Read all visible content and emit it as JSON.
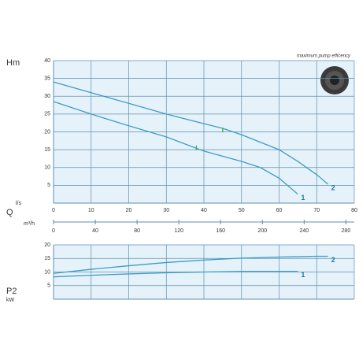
{
  "chart_data": [
    {
      "type": "line",
      "y_label": "Hm",
      "x_label": "l/s",
      "annotation": "maximum pump efficency",
      "xlim": [
        0,
        80
      ],
      "xticks": [
        0,
        10,
        20,
        30,
        40,
        50,
        60,
        70,
        80
      ],
      "ylim": [
        0,
        40
      ],
      "yticks": [
        5,
        10,
        15,
        20,
        25,
        30,
        35,
        40
      ],
      "q_label": "Q",
      "x2_label": "m³/h",
      "x2lim": [
        0,
        288
      ],
      "x2ticks": [
        0,
        40,
        80,
        120,
        160,
        200,
        240,
        280
      ],
      "grid": true,
      "series": [
        {
          "name": "1",
          "color": "#3d9cc8",
          "x": [
            0,
            10,
            20,
            30,
            40,
            50,
            55,
            60,
            65
          ],
          "values": [
            28.5,
            25,
            21.7,
            18.6,
            14.6,
            11.7,
            10,
            7,
            2.5
          ]
        },
        {
          "name": "2",
          "color": "#3d9cc8",
          "x": [
            0,
            10,
            20,
            30,
            40,
            45,
            50,
            60,
            65,
            70,
            73
          ],
          "values": [
            34,
            31,
            28,
            25,
            22.3,
            21,
            19.2,
            15,
            11.7,
            8,
            5.3
          ]
        }
      ],
      "efficiency_points": [
        {
          "x": 38,
          "y": 15.5
        },
        {
          "x": 45,
          "y": 20.5
        }
      ],
      "efficiency_color": "#3cb84a"
    },
    {
      "type": "line",
      "y_label": "P2",
      "y_unit": "kW",
      "xlim": [
        0,
        80
      ],
      "xticks": [
        0,
        10,
        20,
        30,
        40,
        50,
        60,
        70,
        80
      ],
      "ylim": [
        0,
        20
      ],
      "yticks": [
        5,
        10,
        15,
        20
      ],
      "grid": true,
      "series": [
        {
          "name": "1",
          "color": "#3d9cc8",
          "x": [
            0,
            10,
            20,
            30,
            40,
            50,
            60,
            65
          ],
          "values": [
            8.2,
            8.8,
            9.3,
            9.7,
            10,
            10.2,
            10.2,
            10.2
          ]
        },
        {
          "name": "2",
          "color": "#3d9cc8",
          "x": [
            0,
            10,
            20,
            30,
            40,
            50,
            60,
            70,
            73
          ],
          "values": [
            9.5,
            11,
            12.3,
            13.5,
            14.4,
            15.1,
            15.5,
            15.8,
            15.8
          ]
        }
      ]
    }
  ]
}
